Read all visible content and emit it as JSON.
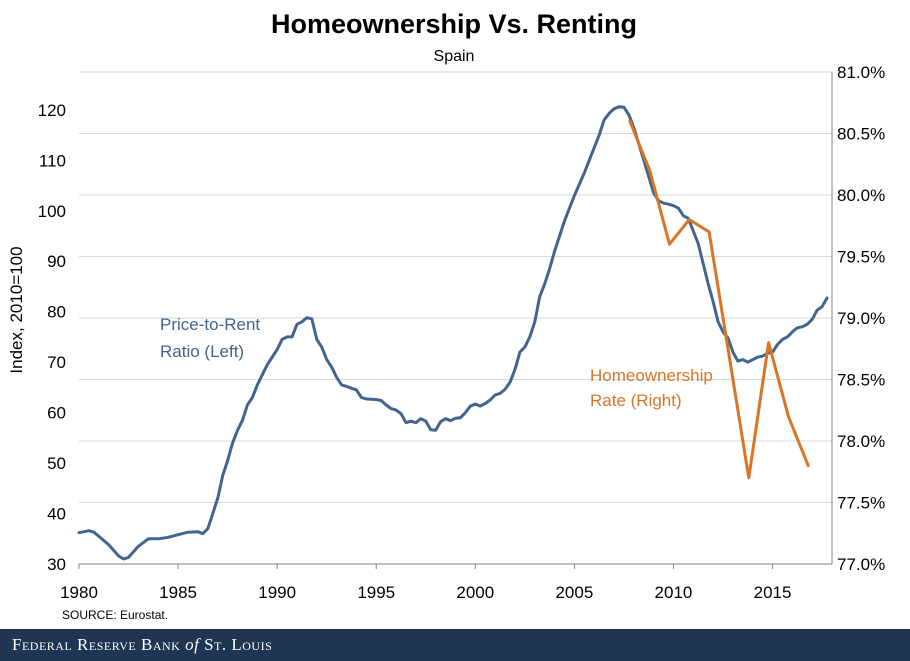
{
  "chart_data": {
    "type": "line",
    "title": "Homeownership Vs. Renting",
    "subtitle": "Spain",
    "ylabel_left": "Index, 2010=100",
    "ylabel_right": "",
    "xlim": [
      1980,
      2018
    ],
    "ylim_left": [
      30,
      125
    ],
    "ylim_right": [
      77.0,
      81.0
    ],
    "x_ticks": [
      1980,
      1985,
      1990,
      1995,
      2000,
      2005,
      2010,
      2015
    ],
    "y_ticks_left": [
      30,
      40,
      50,
      60,
      70,
      80,
      90,
      100,
      110,
      120
    ],
    "y_ticks_right": [
      "77.0%",
      "77.5%",
      "78.0%",
      "78.5%",
      "79.0%",
      "79.5%",
      "80.0%",
      "80.5%",
      "81.0%"
    ],
    "grid": "horizontal",
    "colors": {
      "price_to_rent": "#42648f",
      "homeownership": "#d97524"
    },
    "annotations": {
      "price_line1": "Price-to-Rent",
      "price_line2": "Ratio (Left)",
      "home_line1": "Homeownership",
      "home_line2": "Rate (Right)"
    },
    "series": [
      {
        "name": "Price-to-Rent Ratio",
        "axis": "left",
        "points": [
          [
            1980.0,
            36.2
          ],
          [
            1980.5,
            36.6
          ],
          [
            1980.75,
            36.3
          ],
          [
            1981.0,
            35.5
          ],
          [
            1981.5,
            33.8
          ],
          [
            1982.0,
            31.6
          ],
          [
            1982.25,
            31.0
          ],
          [
            1982.5,
            31.3
          ],
          [
            1983.0,
            33.5
          ],
          [
            1983.5,
            35.0
          ],
          [
            1984.0,
            35.0
          ],
          [
            1984.5,
            35.3
          ],
          [
            1985.0,
            35.8
          ],
          [
            1985.5,
            36.3
          ],
          [
            1986.0,
            36.4
          ],
          [
            1986.25,
            36.0
          ],
          [
            1986.5,
            37.0
          ],
          [
            1986.75,
            40.0
          ],
          [
            1987.0,
            43.0
          ],
          [
            1987.25,
            47.5
          ],
          [
            1987.5,
            50.5
          ],
          [
            1987.75,
            54.0
          ],
          [
            1988.0,
            56.5
          ],
          [
            1988.25,
            58.5
          ],
          [
            1988.5,
            61.5
          ],
          [
            1988.75,
            63.0
          ],
          [
            1989.0,
            65.5
          ],
          [
            1989.5,
            69.5
          ],
          [
            1990.0,
            72.5
          ],
          [
            1990.25,
            74.5
          ],
          [
            1990.5,
            75.0
          ],
          [
            1990.75,
            75.0
          ],
          [
            1991.0,
            77.5
          ],
          [
            1991.25,
            78.0
          ],
          [
            1991.5,
            78.8
          ],
          [
            1991.75,
            78.6
          ],
          [
            1992.0,
            74.5
          ],
          [
            1992.25,
            73.0
          ],
          [
            1992.5,
            70.5
          ],
          [
            1992.75,
            69.0
          ],
          [
            1993.0,
            67.0
          ],
          [
            1993.25,
            65.5
          ],
          [
            1993.5,
            65.2
          ],
          [
            1994.0,
            64.5
          ],
          [
            1994.25,
            63.0
          ],
          [
            1994.5,
            62.7
          ],
          [
            1995.0,
            62.6
          ],
          [
            1995.25,
            62.4
          ],
          [
            1995.5,
            61.5
          ],
          [
            1995.75,
            60.8
          ],
          [
            1996.0,
            60.5
          ],
          [
            1996.25,
            59.8
          ],
          [
            1996.5,
            58.0
          ],
          [
            1996.75,
            58.3
          ],
          [
            1997.0,
            58.0
          ],
          [
            1997.25,
            58.8
          ],
          [
            1997.5,
            58.3
          ],
          [
            1997.75,
            56.6
          ],
          [
            1998.0,
            56.5
          ],
          [
            1998.25,
            58.2
          ],
          [
            1998.5,
            58.8
          ],
          [
            1998.75,
            58.4
          ],
          [
            1999.0,
            58.9
          ],
          [
            1999.25,
            59.0
          ],
          [
            1999.5,
            60.0
          ],
          [
            1999.75,
            61.3
          ],
          [
            2000.0,
            61.7
          ],
          [
            2000.25,
            61.3
          ],
          [
            2000.5,
            61.8
          ],
          [
            2000.75,
            62.5
          ],
          [
            2001.0,
            63.5
          ],
          [
            2001.25,
            63.8
          ],
          [
            2001.5,
            64.6
          ],
          [
            2001.75,
            66.0
          ],
          [
            2002.0,
            68.5
          ],
          [
            2002.25,
            72.0
          ],
          [
            2002.5,
            73.0
          ],
          [
            2002.75,
            75.0
          ],
          [
            2003.0,
            78.0
          ],
          [
            2003.25,
            83.0
          ],
          [
            2003.5,
            85.5
          ],
          [
            2003.75,
            88.5
          ],
          [
            2004.0,
            92.0
          ],
          [
            2004.5,
            98.0
          ],
          [
            2005.0,
            103.0
          ],
          [
            2005.5,
            107.5
          ],
          [
            2006.0,
            112.5
          ],
          [
            2006.25,
            115.0
          ],
          [
            2006.5,
            118.0
          ],
          [
            2006.75,
            119.3
          ],
          [
            2007.0,
            120.2
          ],
          [
            2007.25,
            120.6
          ],
          [
            2007.5,
            120.5
          ],
          [
            2007.75,
            119.0
          ],
          [
            2008.0,
            116.5
          ],
          [
            2008.5,
            110.0
          ],
          [
            2009.0,
            103.5
          ],
          [
            2009.25,
            102.0
          ],
          [
            2009.5,
            101.5
          ],
          [
            2009.75,
            101.3
          ],
          [
            2010.0,
            101.0
          ],
          [
            2010.25,
            100.5
          ],
          [
            2010.5,
            99.0
          ],
          [
            2010.75,
            98.5
          ],
          [
            2011.0,
            96.0
          ],
          [
            2011.25,
            93.5
          ],
          [
            2011.5,
            89.5
          ],
          [
            2011.75,
            85.5
          ],
          [
            2012.0,
            82.0
          ],
          [
            2012.25,
            78.0
          ],
          [
            2012.5,
            76.0
          ],
          [
            2012.75,
            74.8
          ],
          [
            2013.0,
            72.0
          ],
          [
            2013.25,
            70.2
          ],
          [
            2013.5,
            70.5
          ],
          [
            2013.75,
            70.0
          ],
          [
            2014.0,
            70.5
          ],
          [
            2014.25,
            71.0
          ],
          [
            2014.5,
            71.2
          ],
          [
            2014.75,
            71.8
          ],
          [
            2015.0,
            72.0
          ],
          [
            2015.25,
            73.5
          ],
          [
            2015.5,
            74.5
          ],
          [
            2015.75,
            75.0
          ],
          [
            2016.0,
            76.0
          ],
          [
            2016.25,
            76.8
          ],
          [
            2016.5,
            77.0
          ],
          [
            2016.75,
            77.5
          ],
          [
            2017.0,
            78.5
          ],
          [
            2017.25,
            80.3
          ],
          [
            2017.5,
            81.0
          ],
          [
            2017.75,
            82.7
          ]
        ]
      },
      {
        "name": "Homeownership Rate",
        "axis": "right",
        "points": [
          [
            2007.8,
            80.6
          ],
          [
            2008.8,
            80.2
          ],
          [
            2009.8,
            79.6
          ],
          [
            2010.8,
            79.8
          ],
          [
            2011.8,
            79.7
          ],
          [
            2012.8,
            78.7
          ],
          [
            2013.8,
            77.7
          ],
          [
            2014.8,
            78.8
          ],
          [
            2015.8,
            78.2
          ],
          [
            2016.8,
            77.8
          ]
        ]
      }
    ]
  },
  "source_text": "SOURCE: Eurostat.",
  "footer": {
    "prefix": "Federal Reserve Bank",
    "of_word": "of",
    "suffix": "St. Louis"
  }
}
